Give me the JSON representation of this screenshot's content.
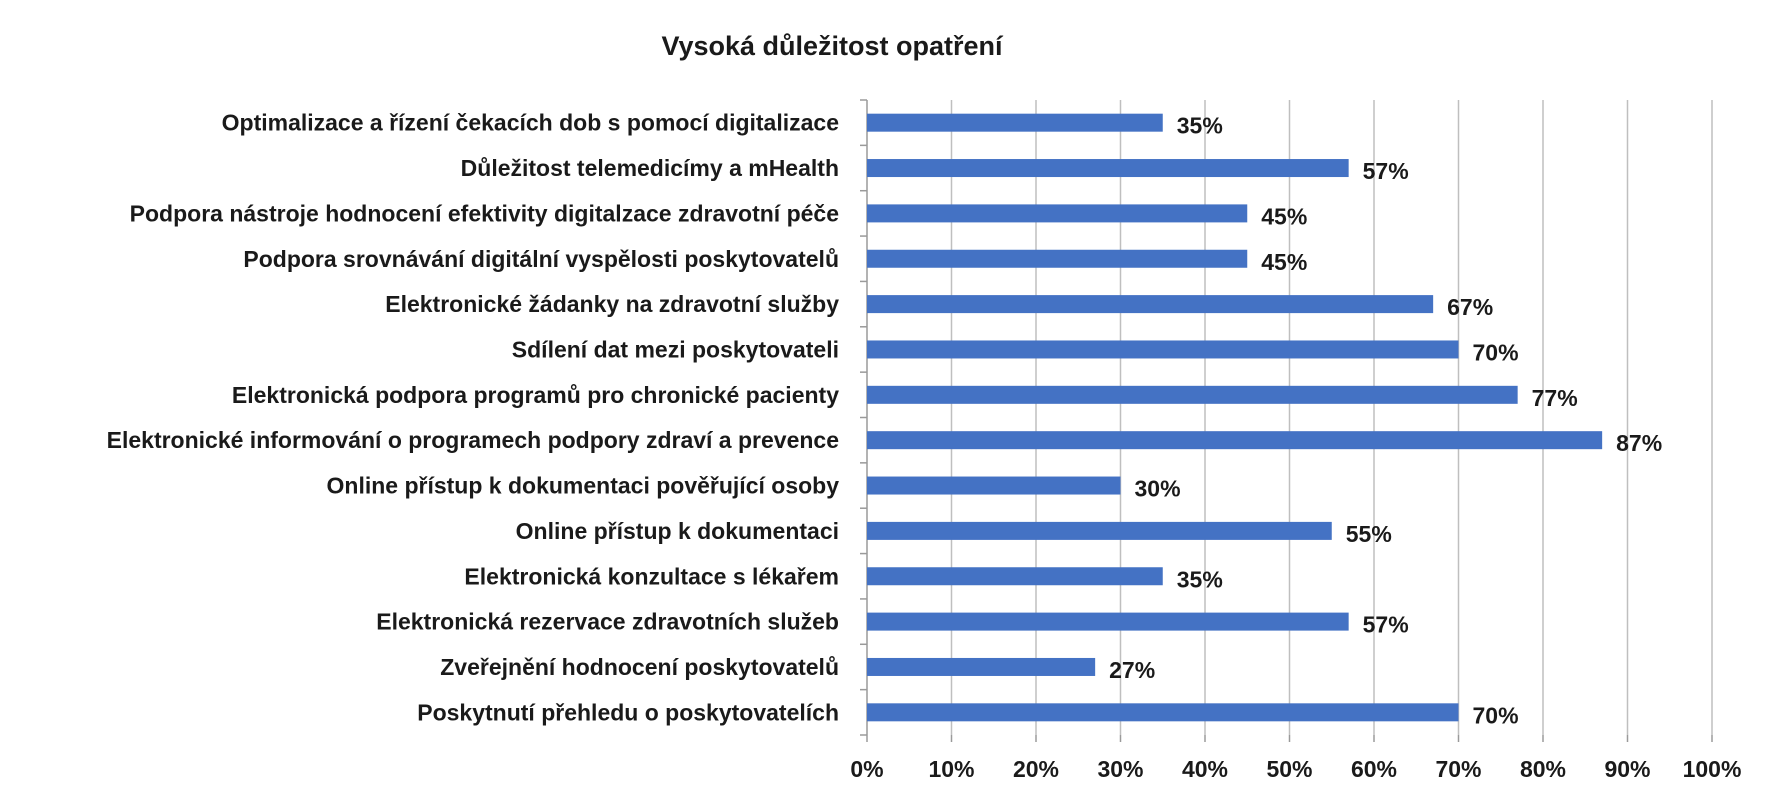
{
  "chart_data": {
    "type": "bar",
    "orientation": "horizontal",
    "title": "Vysoká důležitost opatření",
    "categories": [
      "Optimalizace a řízení čekacích dob s pomocí digitalizace",
      "Důležitost telemedicímy a mHealth",
      "Podpora nástroje hodnocení efektivity digitalzace zdravotní péče",
      "Podpora srovnávání digitální vyspělosti poskytovatelů",
      "Elektronické žádanky na zdravotní služby",
      "Sdílení dat mezi poskytovateli",
      "Elektronická podpora programů pro chronické pacienty",
      "Elektronické informování o programech podpory zdraví a prevence",
      "Online přístup k dokumentaci pověřující osoby",
      "Online přístup k dokumentaci",
      "Elektronická konzultace s lékařem",
      "Elektronická rezervace zdravotních služeb",
      "Zveřejnění hodnocení poskytovatelů",
      "Poskytnutí přehledu o poskytovatelích"
    ],
    "values": [
      35,
      57,
      45,
      45,
      67,
      70,
      77,
      87,
      30,
      55,
      35,
      57,
      27,
      70
    ],
    "value_labels": [
      "35%",
      "57%",
      "45%",
      "45%",
      "67%",
      "70%",
      "77%",
      "87%",
      "30%",
      "55%",
      "35%",
      "57%",
      "27%",
      "70%"
    ],
    "x_ticks": [
      0,
      10,
      20,
      30,
      40,
      50,
      60,
      70,
      80,
      90,
      100
    ],
    "x_tick_labels": [
      "0%",
      "10%",
      "20%",
      "30%",
      "40%",
      "50%",
      "60%",
      "70%",
      "80%",
      "90%",
      "100%"
    ],
    "xlim": [
      0,
      100
    ],
    "xlabel": "",
    "ylabel": "",
    "grid": "vertical",
    "legend": "none",
    "bar_color": "#4472c4",
    "grid_color": "#bfbfbf"
  }
}
